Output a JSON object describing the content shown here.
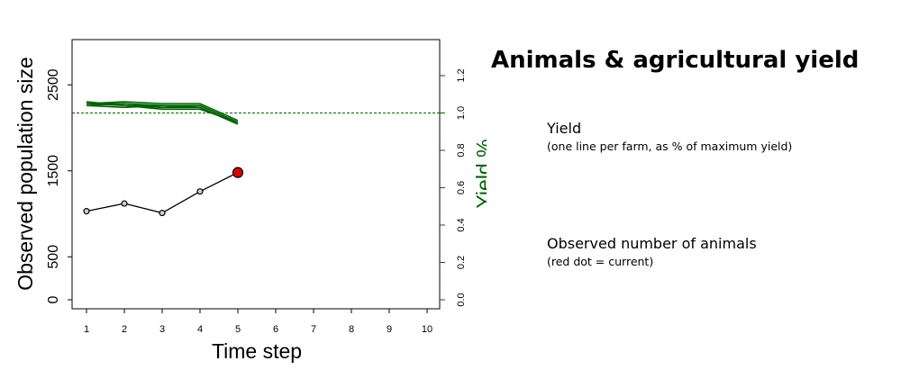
{
  "chart_data": {
    "type": "line",
    "x": [
      1,
      2,
      3,
      4,
      5,
      6,
      7,
      8,
      9,
      10
    ],
    "xlabel": "Time step",
    "ylabel": "Observed population size",
    "ylabel_right": "Yield %",
    "xlim": [
      1,
      10
    ],
    "ylim": [
      0,
      3000
    ],
    "ylim_right": [
      0,
      1.4
    ],
    "left_ticks": [
      "0",
      "500",
      "1500",
      "2500"
    ],
    "right_ticks": [
      "0.0",
      "0.2",
      "0.4",
      "0.6",
      "0.8",
      "1.0",
      "1.2"
    ],
    "x_ticks": [
      "1",
      "2",
      "3",
      "4",
      "5",
      "6",
      "7",
      "8",
      "9",
      "10"
    ],
    "population": {
      "x": [
        1,
        2,
        3,
        4,
        5
      ],
      "y": [
        1030,
        1120,
        1010,
        1260,
        1480
      ],
      "current_index": 4
    },
    "yield_series": [
      {
        "x": [
          1,
          2,
          3,
          4,
          5
        ],
        "y": [
          1.05,
          1.04,
          1.03,
          1.03,
          0.94
        ]
      },
      {
        "x": [
          1,
          2,
          3,
          4,
          5
        ],
        "y": [
          1.04,
          1.05,
          1.04,
          1.04,
          0.95
        ]
      },
      {
        "x": [
          1,
          2,
          3,
          4,
          5
        ],
        "y": [
          1.06,
          1.04,
          1.02,
          1.02,
          0.95
        ]
      },
      {
        "x": [
          1,
          2,
          3,
          4,
          5
        ],
        "y": [
          1.05,
          1.06,
          1.05,
          1.05,
          0.96
        ]
      },
      {
        "x": [
          1,
          2,
          3,
          4,
          5
        ],
        "y": [
          1.04,
          1.03,
          1.04,
          1.03,
          0.94
        ]
      },
      {
        "x": [
          1,
          2,
          3,
          4,
          5
        ],
        "y": [
          1.05,
          1.05,
          1.03,
          1.04,
          0.95
        ]
      }
    ],
    "reference_line_right": 1.0,
    "colors": {
      "yield": "#006400",
      "population": "#000000",
      "current_dot": "#dd0000",
      "point_fill": "#cccccc"
    }
  },
  "panel": {
    "title": "Animals & agricultural yield",
    "legend_yield_title": "Yield",
    "legend_yield_sub": "(one line per farm, as % of maximum yield)",
    "legend_pop_title": "Observed number of animals",
    "legend_pop_sub": "(red dot = current)"
  }
}
